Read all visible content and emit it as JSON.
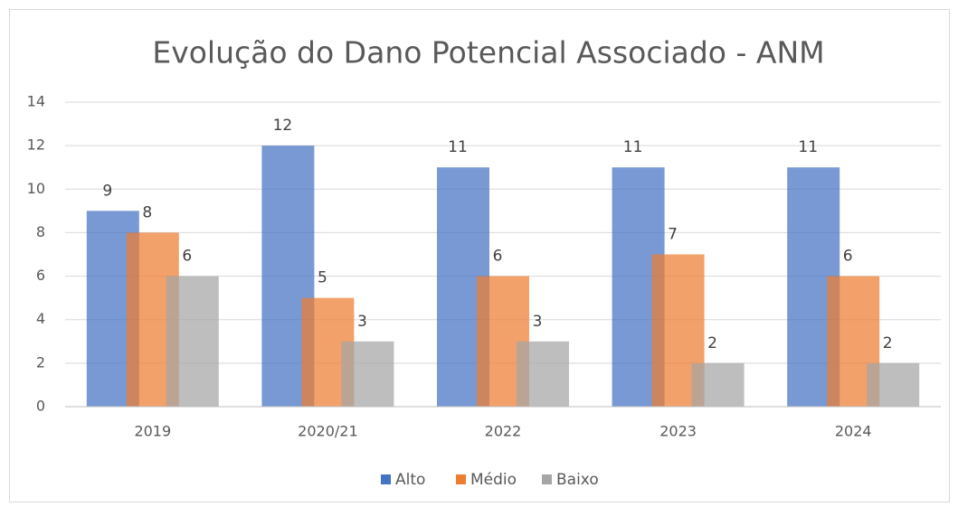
{
  "chart_data": {
    "type": "bar",
    "title": "Evolução do Dano Potencial Associado - ANM",
    "categories": [
      "2019",
      "2020/21",
      "2022",
      "2023",
      "2024"
    ],
    "series": [
      {
        "name": "Alto",
        "color": "#4472c4",
        "values": [
          9,
          12,
          11,
          11,
          11
        ]
      },
      {
        "name": "Médio",
        "color": "#ed7d31",
        "values": [
          8,
          5,
          6,
          7,
          6
        ]
      },
      {
        "name": "Baixo",
        "color": "#a5a5a5",
        "values": [
          6,
          3,
          3,
          2,
          2
        ]
      }
    ],
    "ylim": [
      0,
      14
    ],
    "yticks": [
      0,
      2,
      4,
      6,
      8,
      10,
      12,
      14
    ],
    "grid": true,
    "legend": "bottom"
  }
}
